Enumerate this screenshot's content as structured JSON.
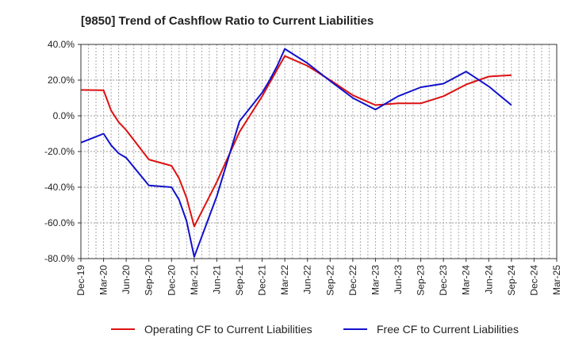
{
  "chart_data": {
    "type": "line",
    "title": "[9850]  Trend of Cashflow Ratio to Current Liabilities",
    "xlabel": "",
    "ylabel": "",
    "ylim": [
      -80,
      40
    ],
    "yticks": [
      40,
      20,
      0,
      -20,
      -40,
      -60,
      -80
    ],
    "ytick_labels": [
      "40.0%",
      "20.0%",
      "0.0%",
      "-20.0%",
      "-40.0%",
      "-60.0%",
      "-80.0%"
    ],
    "xtick_labels": [
      "Dec-19",
      "Mar-20",
      "Jun-20",
      "Sep-20",
      "Dec-20",
      "Mar-21",
      "Jun-21",
      "Sep-21",
      "Dec-21",
      "Mar-22",
      "Jun-22",
      "Sep-22",
      "Dec-22",
      "Mar-23",
      "Jun-23",
      "Sep-23",
      "Dec-23",
      "Mar-24",
      "Jun-24",
      "Sep-24",
      "Dec-24",
      "Mar-25"
    ],
    "grid": true,
    "legend_position": "bottom",
    "series": [
      {
        "name": "Operating CF to Current Liabilities",
        "color": "#dd1111",
        "points": [
          [
            "Dec-19",
            14.5
          ],
          [
            "Mar-20",
            14.3
          ],
          [
            "Apr-20",
            3.0
          ],
          [
            "May-20",
            -3.5
          ],
          [
            "Jun-20",
            -8.0
          ],
          [
            "Sep-20",
            -24.5
          ],
          [
            "Dec-20",
            -28.0
          ],
          [
            "Jan-21",
            -35.0
          ],
          [
            "Feb-21",
            -46.0
          ],
          [
            "Mar-21",
            -62.0
          ],
          [
            "Jun-21",
            -37.0
          ],
          [
            "Sep-21",
            -9.0
          ],
          [
            "Dec-21",
            11.0
          ],
          [
            "Mar-22",
            33.5
          ],
          [
            "Jun-22",
            28.0
          ],
          [
            "Sep-22",
            20.0
          ],
          [
            "Dec-22",
            11.5
          ],
          [
            "Mar-23",
            6.0
          ],
          [
            "Jun-23",
            7.0
          ],
          [
            "Sep-23",
            7.0
          ],
          [
            "Dec-23",
            11.0
          ],
          [
            "Mar-24",
            17.5
          ],
          [
            "Jun-24",
            22.0
          ],
          [
            "Sep-24",
            22.8
          ]
        ]
      },
      {
        "name": "Free CF to Current Liabilities",
        "color": "#1111cc",
        "points": [
          [
            "Dec-19",
            -15.0
          ],
          [
            "Mar-20",
            -10.0
          ],
          [
            "Apr-20",
            -16.5
          ],
          [
            "May-20",
            -21.0
          ],
          [
            "Jun-20",
            -23.5
          ],
          [
            "Sep-20",
            -39.0
          ],
          [
            "Dec-20",
            -40.0
          ],
          [
            "Jan-21",
            -47.0
          ],
          [
            "Feb-21",
            -59.0
          ],
          [
            "Mar-21",
            -79.0
          ],
          [
            "Jun-21",
            -45.0
          ],
          [
            "Sep-21",
            -3.0
          ],
          [
            "Dec-21",
            13.0
          ],
          [
            "Jan-22",
            20.0
          ],
          [
            "Feb-22",
            28.0
          ],
          [
            "Mar-22",
            37.5
          ],
          [
            "Jun-22",
            29.5
          ],
          [
            "Sep-22",
            19.5
          ],
          [
            "Dec-22",
            10.0
          ],
          [
            "Mar-23",
            3.5
          ],
          [
            "Jun-23",
            11.0
          ],
          [
            "Sep-23",
            16.0
          ],
          [
            "Dec-23",
            18.0
          ],
          [
            "Mar-24",
            24.8
          ],
          [
            "Jun-24",
            16.5
          ],
          [
            "Sep-24",
            6.0
          ]
        ]
      }
    ]
  }
}
